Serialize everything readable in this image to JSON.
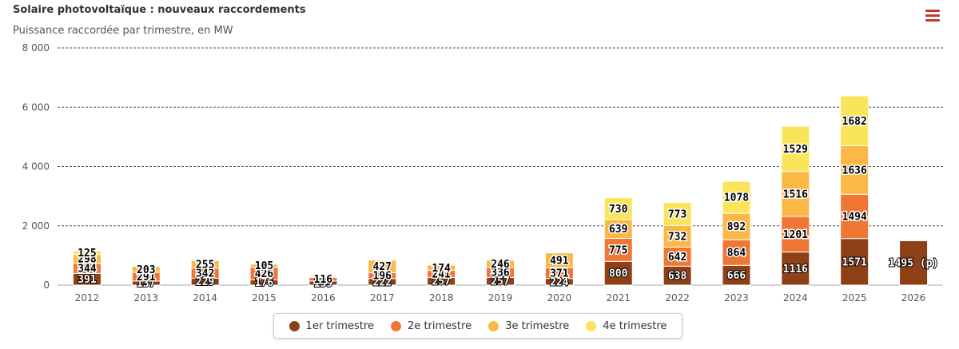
{
  "header": {
    "title": "Solaire photovoltaïque : nouveaux raccordements",
    "subtitle": "Puissance raccordée par trimestre, en MW",
    "menu_icon": "hamburger-menu-icon"
  },
  "chart_data": {
    "type": "bar",
    "stacked": true,
    "categories": [
      "2012",
      "2013",
      "2014",
      "2015",
      "2016",
      "2017",
      "2018",
      "2019",
      "2020",
      "2021",
      "2022",
      "2023",
      "2024",
      "2025",
      "2026"
    ],
    "ylim": [
      0,
      8000
    ],
    "yticks": [
      0,
      2000,
      4000,
      6000,
      8000
    ],
    "ytick_labels": [
      "0",
      "2 000",
      "4 000",
      "6 000",
      "8 000"
    ],
    "grid": true,
    "legend_position": "bottom",
    "series": [
      {
        "name": "1er trimestre",
        "color": "#8f4016",
        "values": [
          391,
          137,
          229,
          176,
          139,
          222,
          257,
          257,
          224,
          800,
          638,
          666,
          1116,
          1571,
          1495
        ],
        "labels": [
          "391",
          "137",
          "229",
          "176",
          "139",
          "222",
          "257",
          "257",
          "224",
          "800",
          "638",
          "666",
          "1116",
          "1571",
          "1495 (p)"
        ]
      },
      {
        "name": "2e trimestre",
        "color": "#f07634",
        "values": [
          344,
          291,
          342,
          426,
          116,
          196,
          241,
          336,
          371,
          775,
          642,
          864,
          1201,
          1494,
          null
        ],
        "labels": [
          "344",
          "291",
          "342",
          "426",
          "116",
          "196",
          "241",
          "336",
          "371",
          "775",
          "642",
          "864",
          "1201",
          "1494",
          ""
        ]
      },
      {
        "name": "3e trimestre",
        "color": "#fbb845",
        "values": [
          298,
          203,
          255,
          105,
          null,
          427,
          174,
          246,
          491,
          639,
          732,
          892,
          1516,
          1636,
          null
        ],
        "labels": [
          "298",
          "203",
          "255",
          "105",
          "",
          "427",
          "174",
          "246",
          "491",
          "639",
          "732",
          "892",
          "1516",
          "1636",
          ""
        ]
      },
      {
        "name": "4e trimestre",
        "color": "#fae55a",
        "values": [
          125,
          null,
          null,
          null,
          null,
          null,
          null,
          null,
          null,
          730,
          773,
          1078,
          1529,
          1682,
          null
        ],
        "labels": [
          "125",
          "",
          "",
          "",
          "",
          "",
          "",
          "",
          "",
          "730",
          "773",
          "1078",
          "1529",
          "1682",
          ""
        ]
      }
    ]
  }
}
